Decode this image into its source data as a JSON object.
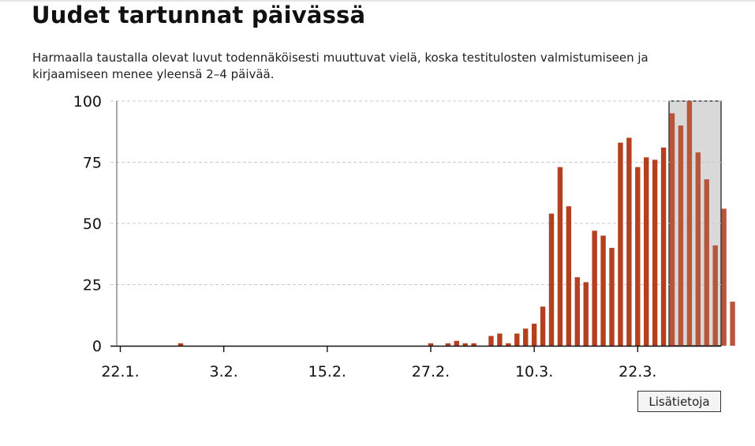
{
  "header": {
    "title": "Uudet tartunnat päivässä",
    "subtitle": "Harmaalla taustalla olevat luvut todennäköisesti muuttuvat vielä, koska testitulosten valmistumiseen ja kirjaamiseen menee yleensä 2–4 päivää."
  },
  "more_button": {
    "label": "Lisätietoja"
  },
  "chart_data": {
    "type": "bar",
    "title": "Uudet tartunnat päivässä",
    "subtitle": "Harmaalla taustalla olevat luvut todennäköisesti muuttuvat vielä, koska testitulosten valmistumiseen ja kirjaamiseen menee yleensä 2–4 päivää.",
    "xlabel": "",
    "ylabel": "",
    "start_date": "2020-01-22",
    "x_ticks": [
      "22.1.",
      "3.2.",
      "15.2.",
      "27.2.",
      "10.3.",
      "22.3."
    ],
    "y_ticks": [
      0,
      25,
      50,
      75,
      100
    ],
    "ylim": [
      0,
      100
    ],
    "grid": true,
    "bar_color": "#b5401f",
    "uncertain_bar_color": "#b8563b",
    "uncertain_background": "#d9d9d9",
    "uncertain_from_index": 64,
    "values": [
      0,
      0,
      0,
      0,
      0,
      0,
      0,
      1,
      0,
      0,
      0,
      0,
      0,
      0,
      0,
      0,
      0,
      0,
      0,
      0,
      0,
      0,
      0,
      0,
      0,
      0,
      0,
      0,
      0,
      0,
      0,
      0,
      0,
      0,
      0,
      0,
      1,
      0,
      1,
      2,
      1,
      1,
      0,
      4,
      5,
      1,
      5,
      7,
      9,
      16,
      54,
      73,
      57,
      28,
      26,
      47,
      45,
      40,
      83,
      85,
      73,
      77,
      76,
      81,
      95,
      90,
      100,
      79,
      68,
      41,
      56,
      18
    ]
  }
}
